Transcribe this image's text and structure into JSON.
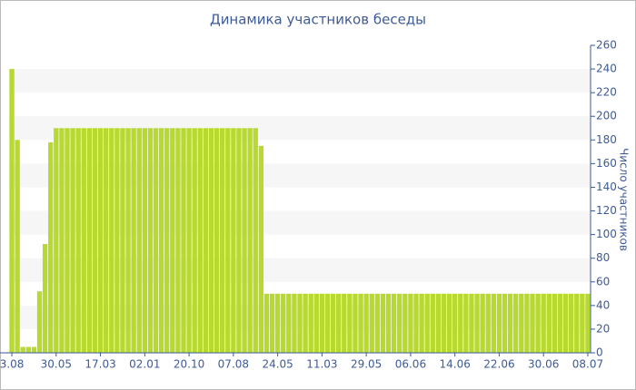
{
  "chart_data": {
    "type": "bar",
    "title": "Динамика участников беседы",
    "y_label": "Число участников",
    "categories": [
      "3.08",
      null,
      null,
      null,
      null,
      null,
      null,
      null,
      "30.05",
      null,
      null,
      null,
      null,
      null,
      null,
      null,
      "17.03",
      null,
      null,
      null,
      null,
      null,
      null,
      null,
      "02.01",
      null,
      null,
      null,
      null,
      null,
      null,
      null,
      "20.10",
      null,
      null,
      null,
      null,
      null,
      null,
      null,
      "07.08",
      null,
      null,
      null,
      null,
      null,
      null,
      null,
      "24.05",
      null,
      null,
      null,
      null,
      null,
      null,
      null,
      "11.03",
      null,
      null,
      null,
      null,
      null,
      null,
      null,
      "29.05",
      null,
      null,
      null,
      null,
      null,
      null,
      null,
      "06.06",
      null,
      null,
      null,
      null,
      null,
      null,
      null,
      "14.06",
      null,
      null,
      null,
      null,
      null,
      null,
      null,
      "22.06",
      null,
      null,
      null,
      null,
      null,
      null,
      null,
      "30.06",
      null,
      null,
      null,
      null,
      null,
      null,
      null,
      "08.07"
    ],
    "values": [
      240,
      180,
      5,
      5,
      5,
      52,
      92,
      178,
      190,
      190,
      190,
      190,
      190,
      190,
      190,
      190,
      190,
      190,
      190,
      190,
      190,
      190,
      190,
      190,
      190,
      190,
      190,
      190,
      190,
      190,
      190,
      190,
      190,
      190,
      190,
      190,
      190,
      190,
      190,
      190,
      190,
      190,
      190,
      190,
      190,
      175,
      50,
      50,
      50,
      50,
      50,
      50,
      50,
      50,
      50,
      50,
      50,
      50,
      50,
      50,
      50,
      50,
      50,
      50,
      50,
      50,
      50,
      50,
      50,
      50,
      50,
      50,
      50,
      50,
      50,
      50,
      50,
      50,
      50,
      50,
      50,
      50,
      50,
      50,
      50,
      50,
      50,
      50,
      50,
      50,
      50,
      50,
      50,
      50,
      50,
      50,
      50,
      50,
      50,
      50,
      50,
      50,
      50,
      50,
      50
    ],
    "color": "#b8d930",
    "ylim": [
      0,
      260
    ],
    "yticks": [
      0,
      20,
      40,
      60,
      80,
      100,
      120,
      140,
      160,
      180,
      200,
      220,
      240,
      260
    ],
    "y_axis_side": "right",
    "stripes": true
  }
}
